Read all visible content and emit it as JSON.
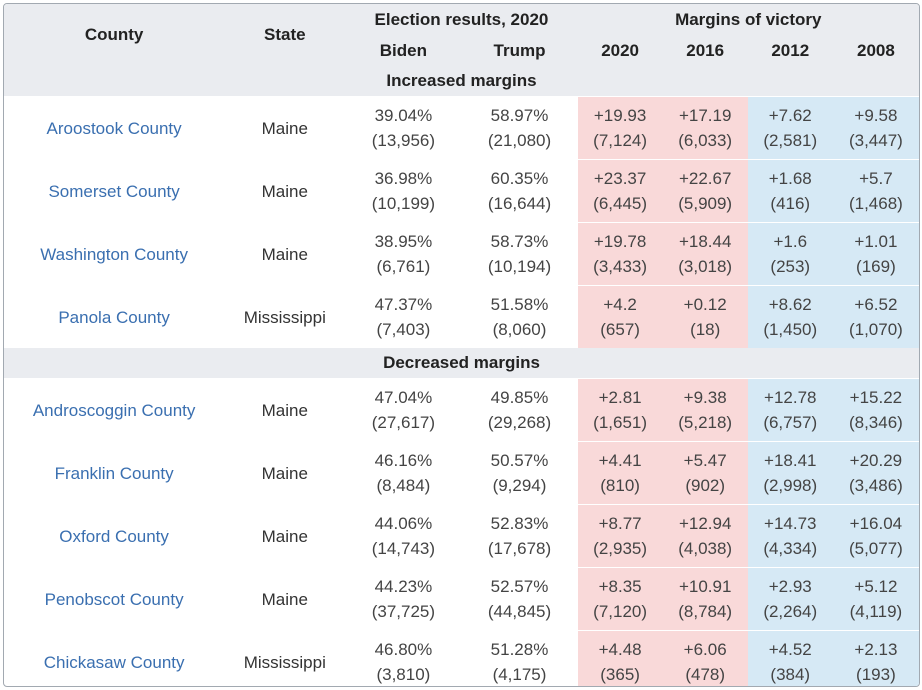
{
  "headers": {
    "county": "County",
    "state": "State",
    "election_results": "Election results, 2020",
    "margins": "Margins of victory",
    "biden": "Biden",
    "trump": "Trump",
    "y2020": "2020",
    "y2016": "2016",
    "y2012": "2012",
    "y2008": "2008"
  },
  "sections": [
    {
      "title": "Increased margins",
      "rows": [
        {
          "county": "Aroostook County",
          "state": "Maine",
          "biden_pct": "39.04%",
          "biden_votes": "(13,956)",
          "trump_pct": "58.97%",
          "trump_votes": "(21,080)",
          "m2020": "+19.93",
          "m2020_votes": "(7,124)",
          "m2016": "+17.19",
          "m2016_votes": "(6,033)",
          "m2012": "+7.62",
          "m2012_votes": "(2,581)",
          "m2008": "+9.58",
          "m2008_votes": "(3,447)"
        },
        {
          "county": "Somerset County",
          "state": "Maine",
          "biden_pct": "36.98%",
          "biden_votes": "(10,199)",
          "trump_pct": "60.35%",
          "trump_votes": "(16,644)",
          "m2020": "+23.37",
          "m2020_votes": "(6,445)",
          "m2016": "+22.67",
          "m2016_votes": "(5,909)",
          "m2012": "+1.68",
          "m2012_votes": "(416)",
          "m2008": "+5.7",
          "m2008_votes": "(1,468)"
        },
        {
          "county": "Washington County",
          "state": "Maine",
          "biden_pct": "38.95%",
          "biden_votes": "(6,761)",
          "trump_pct": "58.73%",
          "trump_votes": "(10,194)",
          "m2020": "+19.78",
          "m2020_votes": "(3,433)",
          "m2016": "+18.44",
          "m2016_votes": "(3,018)",
          "m2012": "+1.6",
          "m2012_votes": "(253)",
          "m2008": "+1.01",
          "m2008_votes": "(169)"
        },
        {
          "county": "Panola County",
          "state": "Mississippi",
          "biden_pct": "47.37%",
          "biden_votes": "(7,403)",
          "trump_pct": "51.58%",
          "trump_votes": "(8,060)",
          "m2020": "+4.2",
          "m2020_votes": "(657)",
          "m2016": "+0.12",
          "m2016_votes": "(18)",
          "m2012": "+8.62",
          "m2012_votes": "(1,450)",
          "m2008": "+6.52",
          "m2008_votes": "(1,070)"
        }
      ]
    },
    {
      "title": "Decreased margins",
      "rows": [
        {
          "county": "Androscoggin County",
          "state": "Maine",
          "biden_pct": "47.04%",
          "biden_votes": "(27,617)",
          "trump_pct": "49.85%",
          "trump_votes": "(29,268)",
          "m2020": "+2.81",
          "m2020_votes": "(1,651)",
          "m2016": "+9.38",
          "m2016_votes": "(5,218)",
          "m2012": "+12.78",
          "m2012_votes": "(6,757)",
          "m2008": "+15.22",
          "m2008_votes": "(8,346)"
        },
        {
          "county": "Franklin County",
          "state": "Maine",
          "biden_pct": "46.16%",
          "biden_votes": "(8,484)",
          "trump_pct": "50.57%",
          "trump_votes": "(9,294)",
          "m2020": "+4.41",
          "m2020_votes": "(810)",
          "m2016": "+5.47",
          "m2016_votes": "(902)",
          "m2012": "+18.41",
          "m2012_votes": "(2,998)",
          "m2008": "+20.29",
          "m2008_votes": "(3,486)"
        },
        {
          "county": "Oxford County",
          "state": "Maine",
          "biden_pct": "44.06%",
          "biden_votes": "(14,743)",
          "trump_pct": "52.83%",
          "trump_votes": "(17,678)",
          "m2020": "+8.77",
          "m2020_votes": "(2,935)",
          "m2016": "+12.94",
          "m2016_votes": "(4,038)",
          "m2012": "+14.73",
          "m2012_votes": "(4,334)",
          "m2008": "+16.04",
          "m2008_votes": "(5,077)"
        },
        {
          "county": "Penobscot County",
          "state": "Maine",
          "biden_pct": "44.23%",
          "biden_votes": "(37,725)",
          "trump_pct": "52.57%",
          "trump_votes": "(44,845)",
          "m2020": "+8.35",
          "m2020_votes": "(7,120)",
          "m2016": "+10.91",
          "m2016_votes": "(8,784)",
          "m2012": "+2.93",
          "m2012_votes": "(2,264)",
          "m2008": "+5.12",
          "m2008_votes": "(4,119)"
        },
        {
          "county": "Chickasaw County",
          "state": "Mississippi",
          "biden_pct": "46.80%",
          "biden_votes": "(3,810)",
          "trump_pct": "51.28%",
          "trump_votes": "(4,175)",
          "m2020": "+4.48",
          "m2020_votes": "(365)",
          "m2016": "+6.06",
          "m2016_votes": "(478)",
          "m2012": "+4.52",
          "m2012_votes": "(384)",
          "m2008": "+2.13",
          "m2008_votes": "(193)"
        }
      ]
    }
  ],
  "colors": {
    "republican_margin": "#f9d9d9",
    "democratic_margin": "#d6e9f5",
    "header_bg": "#eaecf0",
    "link": "#3a6fb0"
  },
  "margin_party": {
    "m2020": "republican",
    "m2016": "republican",
    "m2012": "democratic",
    "m2008": "democratic"
  }
}
